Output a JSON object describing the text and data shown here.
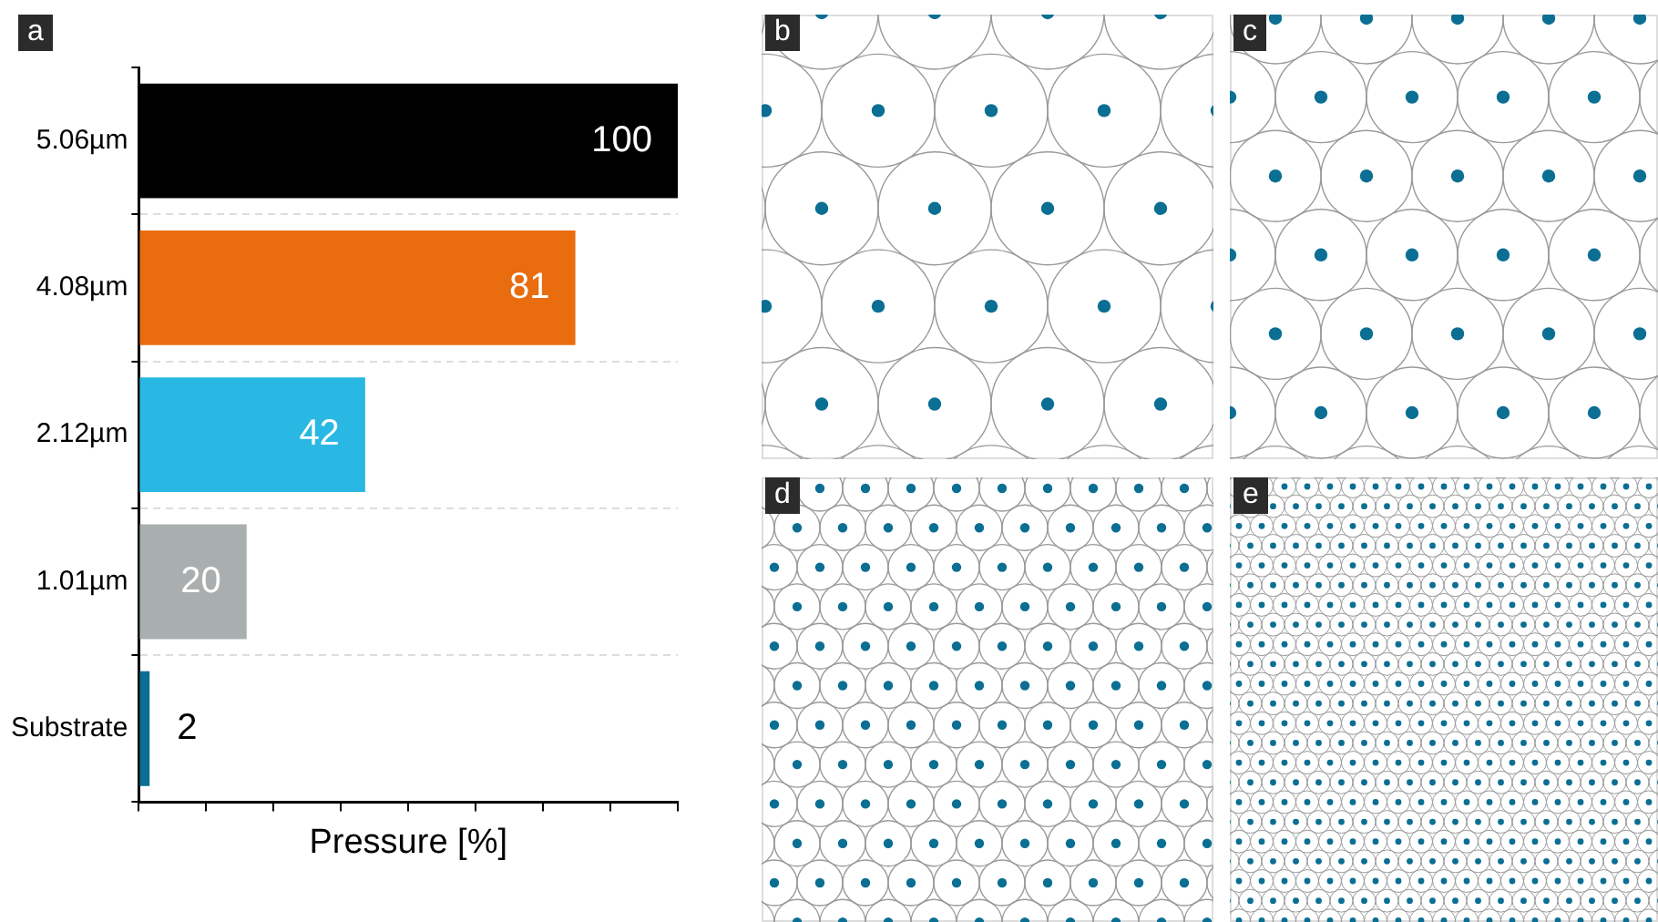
{
  "chart_data": {
    "type": "bar",
    "orientation": "horizontal",
    "xlabel": "Pressure [%]",
    "categories": [
      "5.06µm",
      "4.08µm",
      "2.12µm",
      "1.01µm",
      "Substrate"
    ],
    "values": [
      100,
      81,
      42,
      20,
      2
    ],
    "colors": [
      "#000000",
      "#e96c0e",
      "#29b8e3",
      "#a9afae",
      "#0b6e93"
    ],
    "xlim": [
      0,
      100
    ],
    "xticks": [
      {
        "value": 0,
        "label": null
      },
      {
        "value": 12.5,
        "label": null
      },
      {
        "value": 25,
        "label": null
      },
      {
        "value": 37.5,
        "label": null
      },
      {
        "value": 50,
        "label": null
      },
      {
        "value": 62.5,
        "label": null
      },
      {
        "value": 75,
        "label": null
      },
      {
        "value": 87.5,
        "label": null
      },
      {
        "value": 100,
        "label": null
      }
    ],
    "tick_labels": "y",
    "data_labels": true,
    "grid": "y",
    "legend": false,
    "annotations": [
      "a",
      "b",
      "c",
      "d",
      "e"
    ]
  }
}
